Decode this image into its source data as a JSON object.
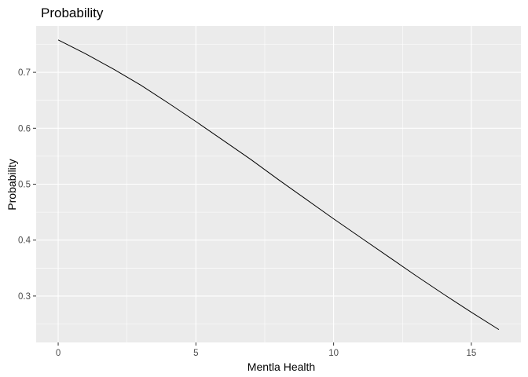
{
  "chart_data": {
    "type": "line",
    "title": "Probability",
    "xlabel": "Mentla Health",
    "ylabel": "Probability",
    "xlim": [
      -0.8,
      16.8
    ],
    "ylim": [
      0.217,
      0.783
    ],
    "x_ticks": [
      0,
      5,
      10,
      15
    ],
    "x_tick_labels": [
      "0",
      "5",
      "10",
      "15"
    ],
    "y_ticks": [
      0.3,
      0.4,
      0.5,
      0.6,
      0.7
    ],
    "y_tick_labels": [
      "0.3",
      "0.4",
      "0.5",
      "0.6",
      "0.7"
    ],
    "grid": true,
    "legend": "none",
    "colors": {
      "panel": "#EBEBEB",
      "grid": "#FFFFFF",
      "line": "#000000",
      "tick_text": "#4D4D4D"
    },
    "series": [
      {
        "x": [
          0,
          1,
          2,
          3,
          4,
          5,
          6,
          7,
          8,
          9,
          10,
          11,
          12,
          13,
          14,
          15,
          16
        ],
        "values": [
          0.758,
          0.733,
          0.706,
          0.677,
          0.645,
          0.612,
          0.578,
          0.544,
          0.508,
          0.473,
          0.438,
          0.404,
          0.37,
          0.336,
          0.303,
          0.271,
          0.24
        ]
      }
    ]
  }
}
